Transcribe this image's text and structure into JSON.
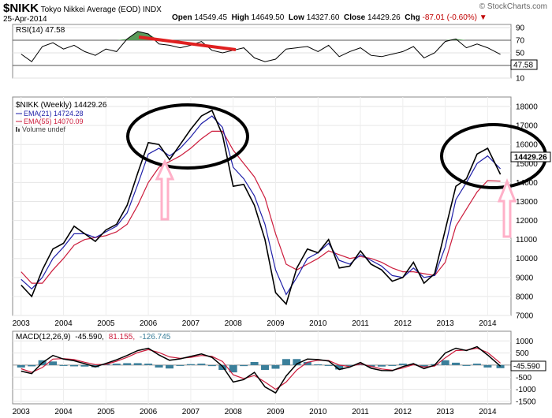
{
  "header": {
    "symbol": "$NIKK",
    "name": "Tokyo Nikkei Average (EOD)",
    "exchange": "INDX",
    "date": "25-Apr-2014",
    "brand": "© StockCharts.com",
    "open_label": "Open",
    "open": "14549.45",
    "high_label": "High",
    "high": "14649.50",
    "low_label": "Low",
    "low": "14327.60",
    "close_label": "Close",
    "close": "14429.26",
    "chg_label": "Chg",
    "chg": "-87.01 (-0.60%)"
  },
  "colors": {
    "price": "#000000",
    "ema21": "#1f1fa8",
    "ema55": "#cc1c3c",
    "rsi_fill": "#5a9a5a",
    "macd_hist": "#3b7f9a",
    "annotation": "#ffb0c8",
    "trend": "#e02020"
  },
  "chart_data": [
    {
      "type": "line",
      "panel": "rsi",
      "legend": "RSI(14) 47.58",
      "last_value_label": "47.58",
      "ylim": [
        10,
        95
      ],
      "y_ticks": [
        "90",
        "70",
        "50",
        "30",
        "10"
      ],
      "levels": [
        70,
        30
      ],
      "x": [
        2003.0,
        2003.25,
        2003.5,
        2003.75,
        2004.0,
        2004.25,
        2004.5,
        2004.75,
        2005.0,
        2005.25,
        2005.5,
        2005.75,
        2006.0,
        2006.25,
        2006.5,
        2006.75,
        2007.0,
        2007.25,
        2007.5,
        2007.75,
        2008.0,
        2008.25,
        2008.5,
        2008.75,
        2009.0,
        2009.25,
        2009.5,
        2009.75,
        2010.0,
        2010.25,
        2010.5,
        2010.75,
        2011.0,
        2011.25,
        2011.5,
        2011.75,
        2012.0,
        2012.25,
        2012.5,
        2012.75,
        2013.0,
        2013.25,
        2013.5,
        2013.75,
        2014.0,
        2014.3
      ],
      "values": [
        48,
        36,
        60,
        66,
        56,
        62,
        52,
        46,
        56,
        52,
        72,
        84,
        80,
        64,
        62,
        58,
        62,
        68,
        54,
        50,
        54,
        58,
        42,
        36,
        40,
        56,
        58,
        60,
        52,
        62,
        44,
        52,
        58,
        46,
        44,
        48,
        52,
        60,
        42,
        50,
        68,
        72,
        58,
        64,
        58,
        47.58
      ]
    },
    {
      "type": "line",
      "panel": "price",
      "legend_price": "$NIKK (Weekly) 14429.26",
      "legend_ema21": "EMA(21) 14724.28",
      "legend_ema55": "EMA(55) 14070.09",
      "legend_volume": "Volume undef",
      "ylim": [
        7000,
        18500
      ],
      "y_ticks": [
        "18000",
        "17000",
        "16000",
        "15000",
        "14000",
        "13000",
        "12000",
        "11000",
        "10000",
        "9000",
        "8000",
        "7000"
      ],
      "x_ticks": [
        "2003",
        "2004",
        "2005",
        "2006",
        "2007",
        "2008",
        "2009",
        "2010",
        "2011",
        "2012",
        "2013",
        "2014"
      ],
      "series": [
        {
          "values": [
            8600,
            8000,
            9400,
            10500,
            10800,
            11700,
            11300,
            10900,
            11500,
            11800,
            12800,
            14500,
            16100,
            16000,
            15200,
            16000,
            16800,
            17500,
            17800,
            16500,
            13800,
            13900,
            12800,
            11000,
            8200,
            7600,
            9500,
            10500,
            10300,
            11000,
            9500,
            9600,
            10400,
            9700,
            9400,
            8800,
            9000,
            9800,
            8700,
            9200,
            11500,
            13800,
            14200,
            15500,
            15800,
            14429
          ]
        },
        {
          "values": [
            8900,
            8400,
            9000,
            10000,
            10600,
            11300,
            11300,
            11100,
            11400,
            11700,
            12400,
            13900,
            15500,
            15800,
            15400,
            15800,
            16400,
            17100,
            17500,
            16900,
            14800,
            14200,
            13300,
            11800,
            9400,
            8100,
            9000,
            10000,
            10300,
            10800,
            9900,
            9700,
            10200,
            9900,
            9600,
            9100,
            9000,
            9500,
            9000,
            9100,
            10600,
            13100,
            14000,
            15000,
            15400,
            14724
          ]
        },
        {
          "values": [
            9300,
            8700,
            8700,
            9400,
            10000,
            10700,
            11000,
            11100,
            11200,
            11400,
            11800,
            12800,
            14000,
            14800,
            15100,
            15400,
            15800,
            16300,
            16700,
            16700,
            15700,
            15000,
            14300,
            13200,
            11300,
            9700,
            9400,
            9700,
            10000,
            10400,
            10200,
            10000,
            10100,
            10000,
            9800,
            9500,
            9300,
            9300,
            9200,
            9100,
            9800,
            11700,
            12600,
            13500,
            14100,
            14070
          ]
        }
      ]
    },
    {
      "type": "line",
      "panel": "macd",
      "legend_title": "MACD(12,26,9)",
      "legend_macd": "-45.590,",
      "legend_signal": "81.155,",
      "legend_hist": "-126.745",
      "last_value_label": "-45.590",
      "ylim": [
        -1600,
        1400
      ],
      "y_ticks": [
        "1000",
        "500",
        "0",
        "-500",
        "-1000",
        "-1500"
      ],
      "x_ticks": [
        "2003",
        "2004",
        "2005",
        "2006",
        "2007",
        "2008",
        "2009",
        "2010",
        "2011",
        "2012",
        "2013",
        "2014"
      ],
      "series": [
        {
          "values": [
            -250,
            -350,
            100,
            400,
            250,
            180,
            60,
            -70,
            70,
            220,
            400,
            600,
            700,
            420,
            200,
            260,
            360,
            460,
            320,
            -50,
            -700,
            -600,
            -300,
            -900,
            -1150,
            -450,
            50,
            250,
            230,
            170,
            -180,
            -80,
            110,
            -130,
            -220,
            -230,
            -60,
            60,
            -150,
            0,
            500,
            700,
            600,
            760,
            420,
            -45.59
          ]
        },
        {
          "values": [
            -150,
            -300,
            -100,
            250,
            270,
            230,
            120,
            20,
            30,
            160,
            320,
            520,
            640,
            520,
            340,
            280,
            320,
            400,
            360,
            150,
            -400,
            -560,
            -430,
            -700,
            -1000,
            -700,
            -200,
            120,
            200,
            190,
            0,
            -60,
            50,
            -50,
            -160,
            -210,
            -120,
            20,
            -80,
            -40,
            300,
            600,
            620,
            700,
            520,
            81.155
          ]
        },
        {
          "values": [
            -100,
            -50,
            200,
            150,
            -20,
            -50,
            -60,
            -90,
            40,
            60,
            80,
            80,
            60,
            -100,
            -140,
            -20,
            40,
            60,
            -40,
            -200,
            -300,
            -40,
            130,
            -200,
            -150,
            250,
            250,
            130,
            30,
            -20,
            -180,
            -20,
            60,
            -80,
            -60,
            -20,
            60,
            40,
            -70,
            40,
            200,
            100,
            -20,
            60,
            -100,
            -126.745
          ]
        }
      ]
    }
  ]
}
